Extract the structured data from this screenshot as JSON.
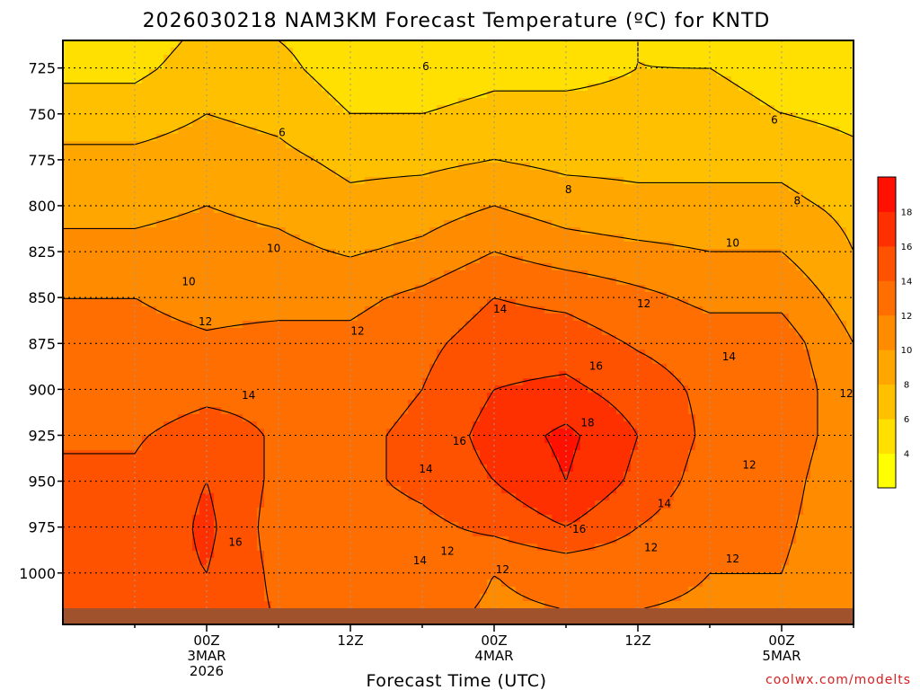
{
  "page": {
    "title": "2026030218 NAM3KM Forecast Temperature (ºC) for KNTD",
    "credit": "coolwx.com/modelts"
  },
  "chart_data": {
    "type": "heatmap",
    "title": "2026030218 NAM3KM Forecast Temperature (ºC) for KNTD",
    "xlabel": "Forecast Time (UTC)",
    "ylabel": "",
    "x_hours": [
      0,
      6,
      12,
      18,
      24,
      30,
      36,
      42,
      48,
      54,
      60
    ],
    "y_pressure_ticks": [
      725,
      750,
      775,
      800,
      825,
      850,
      875,
      900,
      925,
      950,
      975,
      1000
    ],
    "y_range_hpa": [
      710,
      1028
    ],
    "x_ticks": [
      {
        "hour": 6,
        "line1": "00Z",
        "line2": "3MAR",
        "line3": "2026"
      },
      {
        "hour": 18,
        "line1": "12Z",
        "line2": "",
        "line3": ""
      },
      {
        "hour": 30,
        "line1": "00Z",
        "line2": "4MAR",
        "line3": ""
      },
      {
        "hour": 42,
        "line1": "12Z",
        "line2": "",
        "line3": ""
      },
      {
        "hour": 54,
        "line1": "00Z",
        "line2": "5MAR",
        "line3": ""
      }
    ],
    "levels": [
      4,
      6,
      8,
      10,
      12,
      14,
      16,
      18
    ],
    "colorbar": {
      "colors": [
        "#ffff00",
        "#ffe000",
        "#ffc000",
        "#ffa600",
        "#ff8c00",
        "#ff6e00",
        "#ff5200",
        "#ff3000",
        "#ff1000"
      ],
      "labels": [
        "4",
        "6",
        "8",
        "10",
        "12",
        "14",
        "16",
        "18"
      ]
    },
    "profiles_celsius": [
      {
        "hour": 0,
        "p": [
          710,
          725,
          750,
          775,
          800,
          825,
          850,
          875,
          900,
          925,
          950,
          975,
          1000,
          1020
        ],
        "t": [
          5.0,
          5.5,
          7.0,
          8.5,
          9.5,
          10.5,
          12.0,
          12.5,
          13.0,
          13.8,
          14.3,
          14.0,
          15.0,
          15.5
        ]
      },
      {
        "hour": 6,
        "p": [
          710,
          725,
          750,
          775,
          800,
          825,
          850,
          875,
          900,
          925,
          950,
          975,
          1000,
          1020
        ],
        "t": [
          6.5,
          7.0,
          8.0,
          9.0,
          10.0,
          10.8,
          11.5,
          12.2,
          13.5,
          14.8,
          16.0,
          16.5,
          16.0,
          15.5
        ]
      },
      {
        "hour": 12,
        "p": [
          710,
          725,
          750,
          775,
          800,
          825,
          850,
          875,
          900,
          925,
          950,
          975,
          1000,
          1020
        ],
        "t": [
          6.0,
          6.5,
          7.5,
          8.5,
          9.5,
          10.5,
          11.5,
          12.5,
          13.5,
          13.8,
          13.5,
          13.0,
          13.5,
          13.8
        ]
      },
      {
        "hour": 18,
        "p": [
          710,
          725,
          750,
          775,
          800,
          825,
          850,
          875,
          900,
          925,
          950,
          975,
          1000,
          1020
        ],
        "t": [
          5.0,
          5.0,
          6.0,
          7.5,
          8.5,
          9.8,
          11.5,
          12.5,
          13.0,
          13.5,
          13.5,
          13.0,
          13.0,
          13.2
        ]
      },
      {
        "hour": 24,
        "p": [
          710,
          725,
          750,
          775,
          800,
          825,
          850,
          875,
          900,
          925,
          950,
          975,
          1000,
          1020
        ],
        "t": [
          5.0,
          5.0,
          6.0,
          7.5,
          9.0,
          10.5,
          12.5,
          13.5,
          14.0,
          14.5,
          14.5,
          13.5,
          13.0,
          12.5
        ]
      },
      {
        "hour": 30,
        "p": [
          710,
          725,
          750,
          775,
          800,
          825,
          850,
          875,
          900,
          925,
          950,
          975,
          1000,
          1020
        ],
        "t": [
          5.5,
          5.5,
          6.5,
          8.0,
          10.0,
          12.0,
          14.0,
          15.0,
          16.0,
          16.8,
          16.0,
          14.5,
          12.0,
          11.8
        ]
      },
      {
        "hour": 36,
        "p": [
          710,
          725,
          750,
          775,
          800,
          825,
          850,
          875,
          900,
          925,
          950,
          975,
          1000,
          1020
        ],
        "t": [
          5.5,
          5.5,
          6.5,
          7.5,
          9.0,
          11.0,
          13.5,
          15.0,
          16.5,
          18.5,
          18.0,
          16.0,
          12.5,
          12.0
        ]
      },
      {
        "hour": 42,
        "p": [
          710,
          725,
          750,
          775,
          800,
          825,
          850,
          875,
          900,
          925,
          950,
          975,
          1000,
          1020
        ],
        "t": [
          6.0,
          6.0,
          6.5,
          7.5,
          8.5,
          10.5,
          12.5,
          13.8,
          15.0,
          16.0,
          15.5,
          14.0,
          12.5,
          12.0
        ]
      },
      {
        "hour": 48,
        "p": [
          710,
          725,
          750,
          775,
          800,
          825,
          850,
          875,
          900,
          925,
          950,
          975,
          1000,
          1020
        ],
        "t": [
          5.5,
          6.0,
          6.5,
          7.5,
          8.5,
          10.0,
          11.5,
          13.0,
          13.5,
          13.5,
          13.0,
          12.5,
          12.0,
          11.8
        ]
      },
      {
        "hour": 54,
        "p": [
          710,
          725,
          750,
          775,
          800,
          825,
          850,
          875,
          900,
          925,
          950,
          975,
          1000,
          1020
        ],
        "t": [
          5.0,
          5.5,
          6.0,
          7.5,
          8.5,
          10.0,
          11.5,
          13.0,
          13.5,
          13.5,
          13.0,
          12.5,
          12.0,
          11.8
        ]
      },
      {
        "hour": 60,
        "p": [
          710,
          725,
          750,
          775,
          800,
          825,
          850,
          875,
          900,
          925,
          950,
          975,
          1000,
          1020
        ],
        "t": [
          4.0,
          4.5,
          5.5,
          6.5,
          7.5,
          8.0,
          9.0,
          10.0,
          10.5,
          10.5,
          10.0,
          10.0,
          10.0,
          10.0
        ]
      }
    ],
    "contour_labels": [
      {
        "text": "6",
        "hour": 24.3,
        "p": 724
      },
      {
        "text": "6",
        "hour": 12.3,
        "p": 760
      },
      {
        "text": "6",
        "hour": 53.4,
        "p": 753
      },
      {
        "text": "8",
        "hour": 36.2,
        "p": 791
      },
      {
        "text": "8",
        "hour": 55.3,
        "p": 797
      },
      {
        "text": "10",
        "hour": 4.5,
        "p": 841
      },
      {
        "text": "10",
        "hour": 11.6,
        "p": 823
      },
      {
        "text": "10",
        "hour": 49.9,
        "p": 820
      },
      {
        "text": "12",
        "hour": 18.6,
        "p": 868
      },
      {
        "text": "12",
        "hour": 5.9,
        "p": 863
      },
      {
        "text": "12",
        "hour": 42.5,
        "p": 853
      },
      {
        "text": "12",
        "hour": 59.4,
        "p": 902
      },
      {
        "text": "12",
        "hour": 51.3,
        "p": 941
      },
      {
        "text": "12",
        "hour": 43.1,
        "p": 986
      },
      {
        "text": "12",
        "hour": 49.9,
        "p": 992
      },
      {
        "text": "12",
        "hour": 26.1,
        "p": 988
      },
      {
        "text": "12",
        "hour": 30.7,
        "p": 998
      },
      {
        "text": "14",
        "hour": 30.5,
        "p": 856
      },
      {
        "text": "14",
        "hour": 49.6,
        "p": 882
      },
      {
        "text": "14",
        "hour": 9.5,
        "p": 903
      },
      {
        "text": "14",
        "hour": 24.3,
        "p": 943
      },
      {
        "text": "14",
        "hour": 44.2,
        "p": 962
      },
      {
        "text": "14",
        "hour": 23.8,
        "p": 993
      },
      {
        "text": "16",
        "hour": 38.5,
        "p": 887
      },
      {
        "text": "16",
        "hour": 27.1,
        "p": 928
      },
      {
        "text": "16",
        "hour": 37.1,
        "p": 976
      },
      {
        "text": "16",
        "hour": 8.4,
        "p": 983
      },
      {
        "text": "18",
        "hour": 37.8,
        "p": 918
      }
    ],
    "ground_color": "#a0522d",
    "grid": true
  }
}
